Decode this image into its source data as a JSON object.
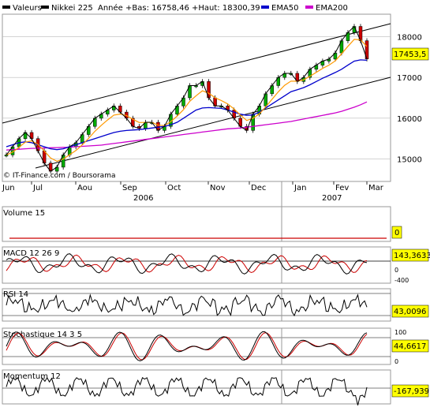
{
  "chart_data": [
    {
      "type": "line",
      "legend": [
        {
          "name": "Valeurs",
          "color": "#000000"
        },
        {
          "name": "Nikkei 225",
          "color": "#000000"
        },
        {
          "name": "Année +Bas: 16758,46 +Haut: 18300,39",
          "color": "#000000"
        },
        {
          "name": "EMA50",
          "color": "#0000cc"
        },
        {
          "name": "EMA200",
          "color": "#cc00cc"
        }
      ],
      "x_ticks": [
        "Jun",
        "Jul",
        "Aou",
        "Sep",
        "Oct",
        "Nov",
        "Dec",
        "Jan",
        "Fev",
        "Mar"
      ],
      "year_labels": [
        "2006",
        "2007"
      ],
      "y_ticks": [
        15000,
        16000,
        17000,
        18000
      ],
      "ylim": [
        14450,
        18550
      ],
      "last_value_label": "17453,5",
      "last_value": 17453.5,
      "copyright": "© IT-Finance.com / Boursorama",
      "series": [
        {
          "name": "Nikkei 225",
          "color": "#000000",
          "values": [
            15100,
            15300,
            15500,
            15650,
            15500,
            15200,
            14900,
            14700,
            14800,
            15100,
            15300,
            15400,
            15600,
            15800,
            16000,
            16100,
            16200,
            16300,
            16150,
            16000,
            15800,
            15750,
            15900,
            15900,
            15700,
            15800,
            16100,
            16300,
            16500,
            16800,
            16800,
            16900,
            16500,
            16300,
            16300,
            16200,
            16000,
            15800,
            15700,
            16100,
            16300,
            16600,
            16800,
            17000,
            17100,
            17100,
            16900,
            17000,
            17200,
            17300,
            17400,
            17450,
            17600,
            17900,
            18100,
            18250,
            17900,
            17453
          ]
        },
        {
          "name": "EMA50",
          "color": "#0000cc",
          "values": [
            15300,
            15350,
            15400,
            15420,
            15400,
            15350,
            15300,
            15250,
            15230,
            15250,
            15300,
            15350,
            15400,
            15450,
            15500,
            15550,
            15600,
            15650,
            15680,
            15700,
            15710,
            15720,
            15740,
            15760,
            15780,
            15800,
            15840,
            15900,
            16000,
            16100,
            16200,
            16250,
            16260,
            16250,
            16240,
            16200,
            16150,
            16100,
            16070,
            16080,
            16150,
            16250,
            16350,
            16450,
            16550,
            16650,
            16700,
            16750,
            16820,
            16900,
            16980,
            17050,
            17120,
            17200,
            17300,
            17400,
            17430,
            17420
          ]
        },
        {
          "name": "EMA200",
          "color": "#cc00cc",
          "values": [
            15220,
            15230,
            15240,
            15250,
            15260,
            15265,
            15270,
            15275,
            15280,
            15285,
            15290,
            15300,
            15310,
            15320,
            15330,
            15340,
            15360,
            15380,
            15400,
            15420,
            15440,
            15460,
            15480,
            15500,
            15520,
            15540,
            15560,
            15580,
            15600,
            15620,
            15640,
            15660,
            15680,
            15700,
            15720,
            15740,
            15750,
            15760,
            15780,
            15800,
            15820,
            15840,
            15860,
            15880,
            15900,
            15920,
            15950,
            15980,
            16010,
            16040,
            16070,
            16100,
            16130,
            16170,
            16220,
            16270,
            16330,
            16400
          ]
        }
      ]
    },
    {
      "type": "bar",
      "title": "Volume 15",
      "last_value_label": "0",
      "series": [
        {
          "name": "Volume 15",
          "color": "#cc0000",
          "values": [
            0
          ]
        }
      ]
    },
    {
      "type": "line",
      "title": "MACD 12 26 9",
      "y_ticks": [
        0,
        -400
      ],
      "last_value_label": "143,3633"
    },
    {
      "type": "line",
      "title": "RSI 14",
      "last_value_label": "43,0096"
    },
    {
      "type": "line",
      "title": "Stochastique 14 3 5",
      "y_ticks": [
        100,
        0
      ],
      "last_value_label": "44,6617"
    },
    {
      "type": "line",
      "title": "Momentum 12",
      "last_value_label": "-167,939"
    }
  ],
  "colors": {
    "grid": "#999999",
    "price": "#000000",
    "ema50": "#0000cc",
    "ema200": "#cc00cc",
    "ema_orange": "#ff9900",
    "signal": "#cc0000",
    "label_box": "#ffff00",
    "volume_line": "#cc0000"
  }
}
